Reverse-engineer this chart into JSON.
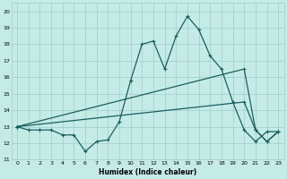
{
  "xlabel": "Humidex (Indice chaleur)",
  "xlim": [
    -0.5,
    23.5
  ],
  "ylim": [
    11,
    20.5
  ],
  "yticks": [
    11,
    12,
    13,
    14,
    15,
    16,
    17,
    18,
    19,
    20
  ],
  "xticks": [
    0,
    1,
    2,
    3,
    4,
    5,
    6,
    7,
    8,
    9,
    10,
    11,
    12,
    13,
    14,
    15,
    16,
    17,
    18,
    19,
    20,
    21,
    22,
    23
  ],
  "bg_color": "#c5ebe7",
  "grid_color": "#9ecdc9",
  "line_color": "#1a5f5f",
  "line1_x": [
    0,
    1,
    2,
    3,
    4,
    5,
    6,
    7,
    8,
    9,
    10,
    11,
    12,
    13,
    14,
    15,
    16,
    17,
    18,
    19,
    20,
    21,
    22,
    23
  ],
  "line1_y": [
    13.0,
    12.8,
    12.8,
    12.8,
    12.5,
    12.5,
    11.5,
    12.1,
    12.2,
    13.3,
    15.8,
    18.0,
    18.2,
    16.5,
    18.5,
    19.7,
    18.9,
    17.3,
    16.5,
    14.5,
    12.8,
    12.1,
    12.7,
    12.7
  ],
  "line2_x": [
    0,
    20,
    21,
    22,
    23
  ],
  "line2_y": [
    13.0,
    16.5,
    12.8,
    12.1,
    12.7
  ],
  "line3_x": [
    0,
    20,
    21,
    22,
    23
  ],
  "line3_y": [
    13.0,
    14.5,
    12.8,
    12.1,
    12.7
  ],
  "figsize": [
    3.2,
    2.0
  ],
  "dpi": 100
}
